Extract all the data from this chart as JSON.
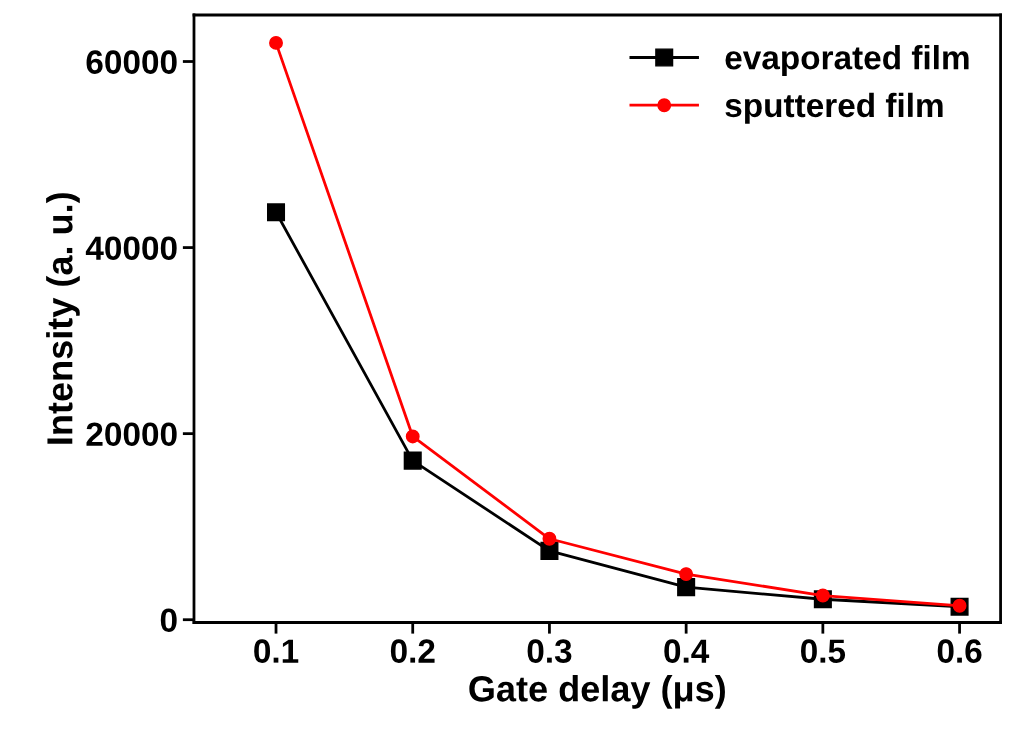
{
  "chart_data": {
    "type": "line",
    "xlabel": "Gate delay (μs)",
    "ylabel": "Intensity (a. u.)",
    "x": [
      0.1,
      0.2,
      0.3,
      0.4,
      0.5,
      0.6
    ],
    "series": [
      {
        "name": "evaporated film",
        "color": "#000000",
        "marker": "square",
        "values": [
          43800,
          17100,
          7400,
          3500,
          2200,
          1400
        ]
      },
      {
        "name": "sputtered film",
        "color": "#ff0000",
        "marker": "circle",
        "values": [
          62000,
          19700,
          8700,
          4900,
          2600,
          1500
        ]
      }
    ],
    "xlim": [
      0.04,
      0.63
    ],
    "ylim": [
      -300,
      65000
    ],
    "xticks": [
      0.1,
      0.2,
      0.3,
      0.4,
      0.5,
      0.6
    ],
    "yticks": [
      0,
      20000,
      40000,
      60000
    ],
    "legend": "top right",
    "grid": false,
    "line_style": "solid"
  }
}
